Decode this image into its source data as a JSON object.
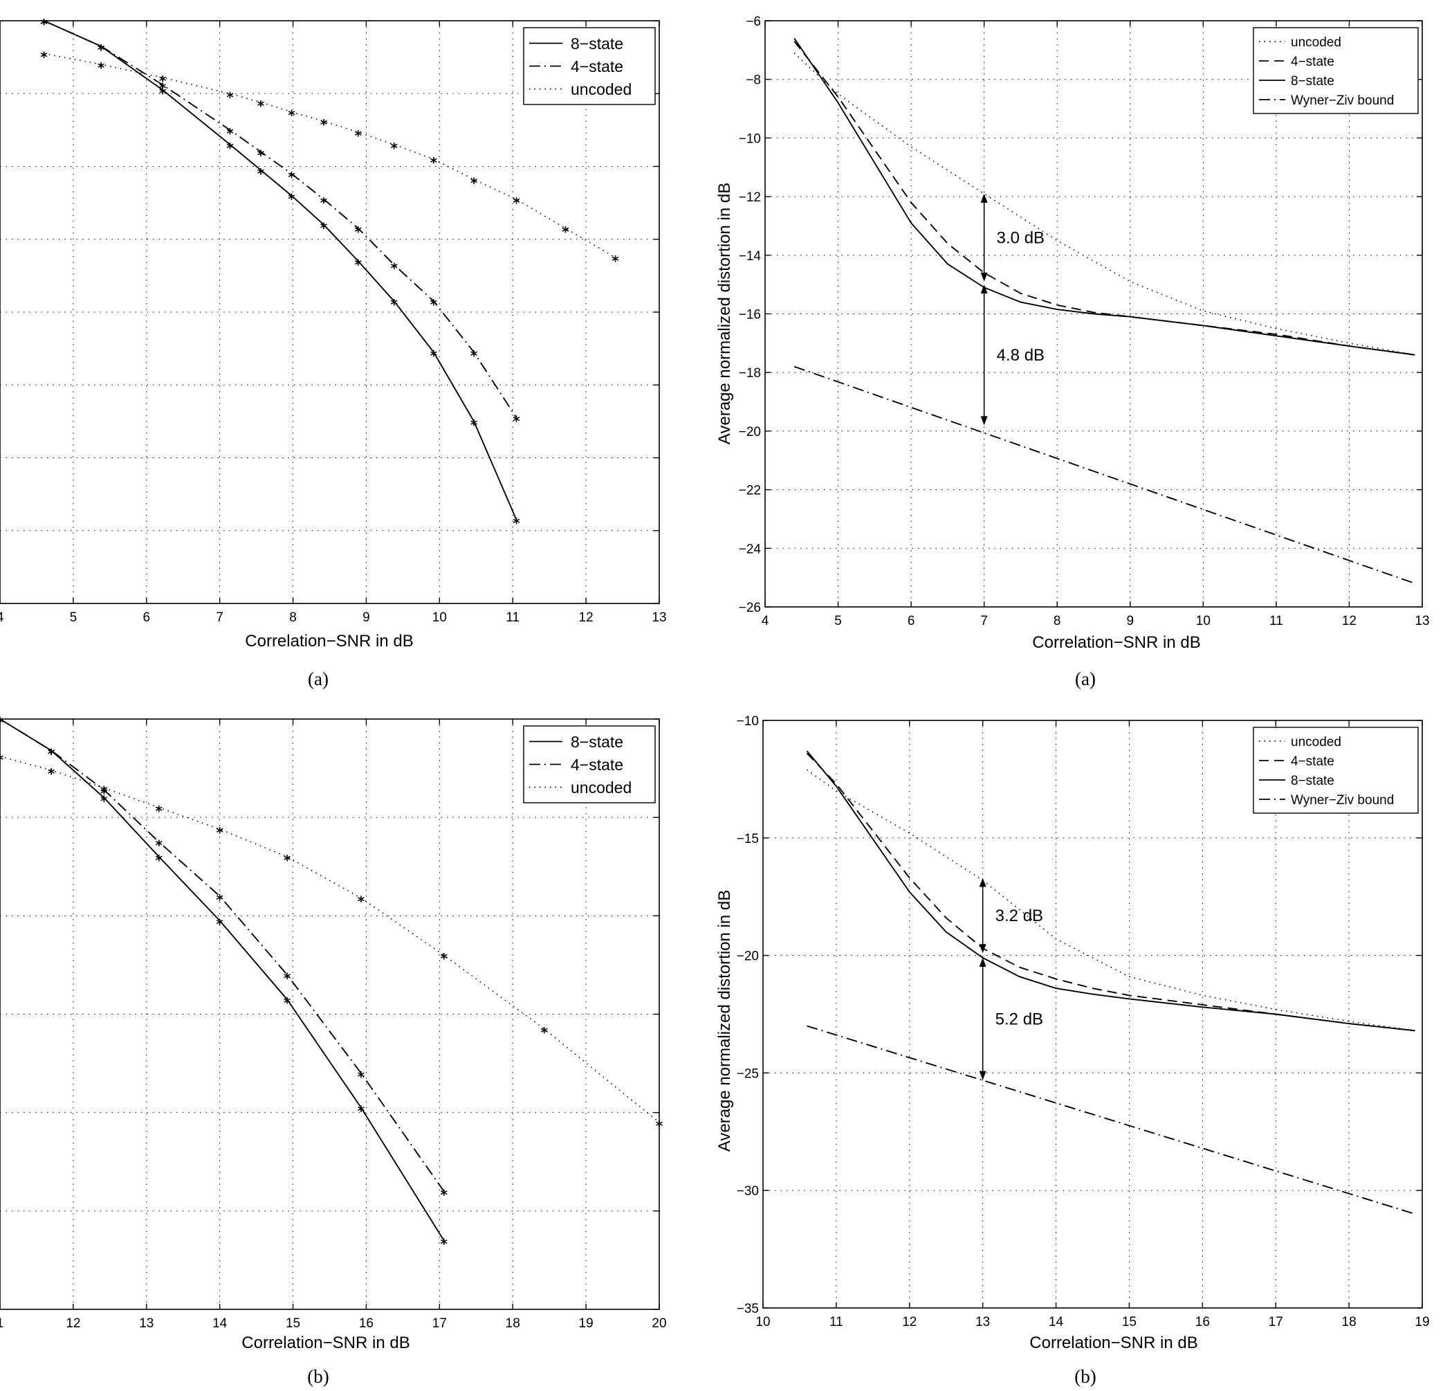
{
  "colors": {
    "ink": "#000000",
    "background": "#ffffff"
  },
  "chart_data": [
    {
      "type": "line",
      "xlabel": "Correlation−SNR in dB",
      "ylabel": "",
      "caption": "(a)",
      "xlim": [
        4,
        13
      ],
      "xticks": [
        "4",
        "5",
        "6",
        "7",
        "8",
        "9",
        "10",
        "11",
        "12",
        "13"
      ],
      "ylim": [
        -8,
        0
      ],
      "yticks": [],
      "grid": true,
      "legend_position": "top-right",
      "markers": "asterisk",
      "series": [
        {
          "name": "8−state",
          "style": "solid",
          "x": [
            4.6,
            5.38,
            6.22,
            7.14,
            7.56,
            7.98,
            8.42,
            8.89,
            9.38,
            9.92,
            10.47,
            11.05
          ],
          "y": [
            0,
            -0.35,
            -0.95,
            -1.7,
            -2.05,
            -2.4,
            -2.8,
            -3.3,
            -3.85,
            -4.55,
            -5.5,
            -6.85
          ]
        },
        {
          "name": "4−state",
          "style": "dashdot",
          "x": [
            4.6,
            5.38,
            6.22,
            7.14,
            7.56,
            7.98,
            8.42,
            8.89,
            9.38,
            9.92,
            10.47,
            11.05
          ],
          "y": [
            0,
            -0.35,
            -0.88,
            -1.5,
            -1.8,
            -2.1,
            -2.45,
            -2.85,
            -3.35,
            -3.85,
            -4.55,
            -5.45
          ]
        },
        {
          "name": "uncoded",
          "style": "dotted",
          "x": [
            4.6,
            5.38,
            6.22,
            7.14,
            7.56,
            7.98,
            8.42,
            8.89,
            9.38,
            9.92,
            10.47,
            11.05,
            11.72,
            12.4
          ],
          "y": [
            -0.45,
            -0.6,
            -0.78,
            -1.0,
            -1.12,
            -1.25,
            -1.38,
            -1.53,
            -1.7,
            -1.9,
            -2.18,
            -2.45,
            -2.85,
            -3.25
          ]
        }
      ]
    },
    {
      "type": "line",
      "xlabel": "Correlation−SNR in dB",
      "ylabel": "Average normalized distortion in dB",
      "caption": "(a)",
      "xlim": [
        4,
        13
      ],
      "xticks": [
        "4",
        "5",
        "6",
        "7",
        "8",
        "9",
        "10",
        "11",
        "12",
        "13"
      ],
      "ylim": [
        -26,
        -6
      ],
      "yticks": [
        "−6",
        "−8",
        "−10",
        "−12",
        "−14",
        "−16",
        "−18",
        "−20",
        "−22",
        "−24",
        "−26"
      ],
      "grid": true,
      "legend_position": "top-right",
      "series": [
        {
          "name": "uncoded",
          "style": "dotted",
          "x": [
            4.4,
            5,
            6,
            7,
            8,
            9,
            10,
            11,
            12,
            12.9
          ],
          "y": [
            -7.1,
            -8.5,
            -10.3,
            -11.9,
            -13.5,
            -14.9,
            -15.9,
            -16.5,
            -17.0,
            -17.4
          ]
        },
        {
          "name": "4−state",
          "style": "dashed",
          "x": [
            4.4,
            5,
            6,
            6.5,
            7,
            7.5,
            8,
            8.5,
            9,
            10,
            11,
            12,
            12.9
          ],
          "y": [
            -6.7,
            -8.6,
            -12.2,
            -13.6,
            -14.6,
            -15.3,
            -15.7,
            -15.95,
            -16.1,
            -16.4,
            -16.7,
            -17.1,
            -17.4
          ]
        },
        {
          "name": "8−state",
          "style": "solid",
          "x": [
            4.4,
            5,
            6,
            6.5,
            7,
            7.5,
            8,
            8.5,
            9,
            10,
            11,
            12,
            12.9
          ],
          "y": [
            -6.6,
            -8.8,
            -12.9,
            -14.3,
            -15.1,
            -15.6,
            -15.85,
            -16.0,
            -16.1,
            -16.4,
            -16.75,
            -17.1,
            -17.4
          ]
        },
        {
          "name": "Wyner−Ziv bound",
          "style": "dashdot",
          "x": [
            4.4,
            12.9
          ],
          "y": [
            -17.8,
            -25.2
          ]
        }
      ],
      "annotations": [
        {
          "text": "3.0 dB",
          "x": 7,
          "from": -11.9,
          "to": -14.9
        },
        {
          "text": "4.8 dB",
          "x": 7,
          "from": -15.0,
          "to": -19.8
        }
      ]
    },
    {
      "type": "line",
      "xlabel": "Correlation−SNR in dB",
      "ylabel": "",
      "caption": "(b)",
      "xlim": [
        11,
        20
      ],
      "xticks": [
        "1",
        "12",
        "13",
        "14",
        "15",
        "16",
        "17",
        "18",
        "19",
        "20"
      ],
      "ylim": [
        -6,
        0
      ],
      "yticks": [],
      "grid": true,
      "legend_position": "top-right",
      "markers": "asterisk",
      "series": [
        {
          "name": "8−state",
          "style": "solid",
          "x": [
            11,
            11.7,
            12.42,
            13.17,
            14.0,
            14.92,
            15.93,
            17.06
          ],
          "y": [
            0,
            -0.32,
            -0.8,
            -1.4,
            -2.05,
            -2.85,
            -3.95,
            -5.3
          ]
        },
        {
          "name": "4−state",
          "style": "dashdot",
          "x": [
            11,
            11.7,
            12.42,
            13.17,
            14.0,
            14.92,
            15.93,
            17.06
          ],
          "y": [
            0,
            -0.32,
            -0.72,
            -1.25,
            -1.8,
            -2.6,
            -3.6,
            -4.8
          ]
        },
        {
          "name": "uncoded",
          "style": "dotted",
          "x": [
            11,
            11.7,
            12.42,
            13.17,
            14.0,
            14.92,
            15.93,
            17.06,
            18.43,
            20.0
          ],
          "y": [
            -0.38,
            -0.52,
            -0.7,
            -0.9,
            -1.12,
            -1.4,
            -1.82,
            -2.4,
            -3.15,
            -4.1
          ]
        }
      ]
    },
    {
      "type": "line",
      "xlabel": "Correlation−SNR in dB",
      "ylabel": "Average normalized distortion in dB",
      "caption": "(b)",
      "xlim": [
        10,
        19
      ],
      "xticks": [
        "10",
        "11",
        "12",
        "13",
        "14",
        "15",
        "16",
        "17",
        "18",
        "19"
      ],
      "ylim": [
        -35,
        -10
      ],
      "yticks": [
        "−10",
        "−15",
        "−20",
        "−25",
        "−30",
        "−35"
      ],
      "grid": true,
      "legend_position": "top-right",
      "series": [
        {
          "name": "uncoded",
          "style": "dotted",
          "x": [
            10.6,
            11,
            12,
            13,
            14,
            15,
            16,
            17,
            18,
            18.9
          ],
          "y": [
            -12.1,
            -13.0,
            -14.8,
            -16.8,
            -19.3,
            -20.9,
            -21.7,
            -22.3,
            -22.8,
            -23.2
          ]
        },
        {
          "name": "4−state",
          "style": "dashed",
          "x": [
            10.6,
            11,
            12,
            12.5,
            13,
            13.5,
            14,
            14.5,
            15,
            16,
            17,
            18,
            18.9
          ],
          "y": [
            -11.4,
            -12.7,
            -16.7,
            -18.4,
            -19.7,
            -20.5,
            -21.0,
            -21.4,
            -21.7,
            -22.1,
            -22.5,
            -22.9,
            -23.2
          ]
        },
        {
          "name": "8−state",
          "style": "solid",
          "x": [
            10.6,
            11,
            12,
            12.5,
            13,
            13.5,
            14,
            14.5,
            15,
            16,
            17,
            18,
            18.9
          ],
          "y": [
            -11.3,
            -12.8,
            -17.3,
            -19.0,
            -20.1,
            -20.9,
            -21.4,
            -21.65,
            -21.85,
            -22.2,
            -22.5,
            -22.9,
            -23.2
          ]
        },
        {
          "name": "Wyner−Ziv bound",
          "style": "dashdot",
          "x": [
            10.6,
            18.9
          ],
          "y": [
            -23.0,
            -31.0
          ]
        }
      ],
      "annotations": [
        {
          "text": "3.2 dB",
          "x": 13,
          "from": -16.7,
          "to": -19.9
        },
        {
          "text": "5.2 dB",
          "x": 13,
          "from": -20.1,
          "to": -25.3
        }
      ]
    }
  ]
}
